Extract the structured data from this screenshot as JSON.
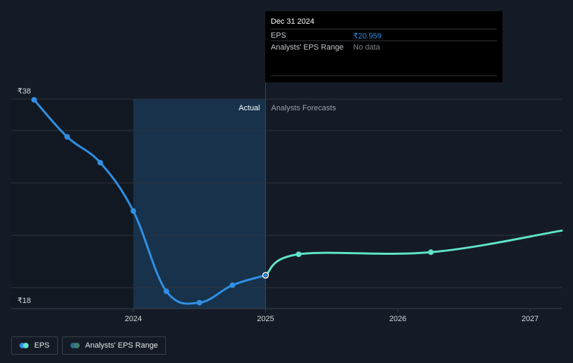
{
  "chart_data": {
    "type": "line",
    "y_range": [
      18,
      38
    ],
    "y_tick_labels": [
      "₹38",
      "₹18"
    ],
    "x_ticks": [
      "2024",
      "2025",
      "2026",
      "2027"
    ],
    "x_range": [
      2023.3,
      2027.24
    ],
    "regions": {
      "actual_label": "Actual",
      "forecast_label": "Analysts Forecasts",
      "highlight_start": 2024.0,
      "divider": 2025.0
    },
    "series": [
      {
        "name": "EPS",
        "color": "#2f8fe3",
        "points": [
          {
            "x": 2023.25,
            "y": 38.0
          },
          {
            "x": 2023.5,
            "y": 34.4
          },
          {
            "x": 2023.75,
            "y": 31.9
          },
          {
            "x": 2024.0,
            "y": 27.2
          },
          {
            "x": 2024.25,
            "y": 19.4
          },
          {
            "x": 2024.5,
            "y": 18.3
          },
          {
            "x": 2024.75,
            "y": 20.0
          },
          {
            "x": 2025.0,
            "y": 20.96
          }
        ]
      },
      {
        "name": "EPS",
        "color": "#5fe3c9",
        "points": [
          {
            "x": 2025.0,
            "y": 20.96
          },
          {
            "x": 2025.25,
            "y": 23.0
          },
          {
            "x": 2026.25,
            "y": 23.2
          },
          {
            "x": 2027.24,
            "y": 25.3
          }
        ]
      }
    ],
    "markers_skip_last": true
  },
  "tooltip": {
    "date": "Dec 31 2024",
    "rows": [
      {
        "label": "EPS",
        "value": "₹20.959",
        "color": "#2f8fe3"
      },
      {
        "label": "Analysts' EPS Range",
        "value": "No data",
        "color": "#7e848c"
      }
    ]
  },
  "legend": [
    {
      "label": "EPS",
      "colors": [
        "#2f8fe3",
        "#5fe3c9"
      ]
    },
    {
      "label": "Analysts' EPS Range",
      "colors": [
        "#2b6c8e",
        "#3f7c74"
      ]
    }
  ],
  "colors": {
    "background": "#151b26",
    "grid": "#2c3440",
    "highlight": "#17324a",
    "dark_region": "#121822",
    "divider": "#3a4656"
  }
}
